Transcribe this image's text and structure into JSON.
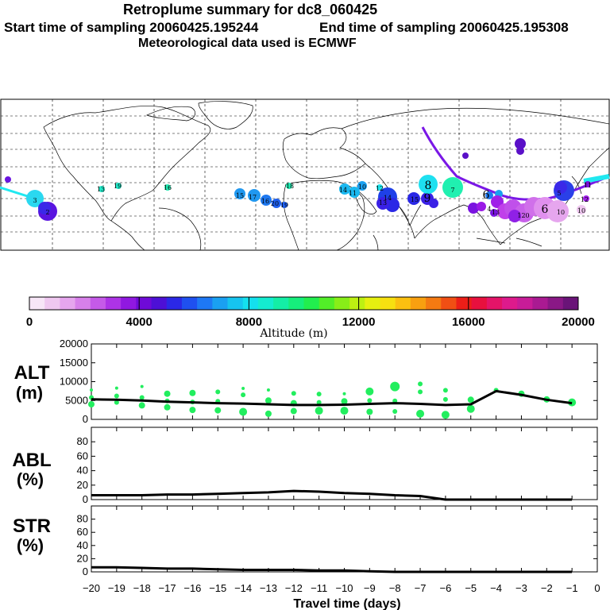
{
  "header": {
    "title": "Retroplume summary for dc8_060425",
    "start": "Start time of sampling 20060425.195244",
    "end": "End time of sampling 20060425.195308",
    "met": "Meteorological data used is ECMWF"
  },
  "colorbar": {
    "ticks": [
      "0",
      "4000",
      "8000",
      "12000",
      "16000",
      "20000"
    ],
    "label": "Altitude (m)",
    "colors": [
      "#f7e6f7",
      "#efc8f0",
      "#e6a6ee",
      "#d780ea",
      "#c55ae8",
      "#ad33e6",
      "#9018e0",
      "#6f0ad8",
      "#4d10d6",
      "#2b28e6",
      "#1f50f0",
      "#1e78f5",
      "#1aa0f2",
      "#16c4ef",
      "#14e0ee",
      "#14ecd0",
      "#14eea6",
      "#16ee7c",
      "#22ee4e",
      "#52ee28",
      "#88ee18",
      "#bdf012",
      "#e6f010",
      "#f7e010",
      "#fbc010",
      "#f8a010",
      "#f47a12",
      "#f04f14",
      "#ec1e18",
      "#e8103e",
      "#e41468",
      "#de1a8c",
      "#c81c98",
      "#aa1a92",
      "#8a1886",
      "#6a1478"
    ]
  },
  "map_labels": [
    "3",
    "2",
    "13",
    "19",
    "16",
    "15",
    "17",
    "16",
    "20",
    "19",
    "18",
    "14",
    "11",
    "10",
    "12",
    "14",
    "13",
    "15",
    "9",
    "8",
    "7",
    "6",
    "5",
    "4",
    "120",
    "10",
    "6",
    "10",
    "12",
    "11",
    "13"
  ],
  "panels": {
    "alt": {
      "label1": "ALT",
      "label2": "(m)",
      "yticks": [
        "20000",
        "15000",
        "10000",
        "5000",
        "0"
      ]
    },
    "abl": {
      "label1": "ABL",
      "label2": "(%)",
      "yticks": [
        "80",
        "60",
        "40",
        "20",
        "0"
      ]
    },
    "str": {
      "label1": "STR",
      "label2": "(%)",
      "yticks": [
        "80",
        "60",
        "40",
        "20",
        "0"
      ]
    }
  },
  "xaxis": {
    "ticks": [
      "−20",
      "−19",
      "−18",
      "−17",
      "−16",
      "−15",
      "−14",
      "−13",
      "−12",
      "−11",
      "−10",
      "−9",
      "−8",
      "−7",
      "−6",
      "−5",
      "−4",
      "−3",
      "−2",
      "−1",
      "0"
    ],
    "label": "Travel time (days)"
  },
  "chart_data": [
    {
      "type": "line",
      "title": "ALT",
      "ylabel": "ALT (m)",
      "xlabel": "Travel time (days)",
      "xlim": [
        -20,
        0
      ],
      "ylim": [
        0,
        20000
      ],
      "x": [
        -20,
        -19,
        -18,
        -17,
        -16,
        -15,
        -14,
        -13,
        -12,
        -11,
        -10,
        -9,
        -8,
        -7,
        -6,
        -5,
        -4,
        -3,
        -2,
        -1
      ],
      "values": [
        5300,
        5200,
        5000,
        4700,
        4500,
        4300,
        4200,
        4000,
        3800,
        3800,
        3900,
        4100,
        4300,
        4100,
        3800,
        4000,
        7500,
        6500,
        5200,
        4300
      ],
      "scatter_points": [
        {
          "x": -20,
          "y": 7800,
          "s": 2
        },
        {
          "x": -20,
          "y": 5800,
          "s": 3
        },
        {
          "x": -20,
          "y": 4000,
          "s": 4
        },
        {
          "x": -19,
          "y": 8300,
          "s": 2
        },
        {
          "x": -19,
          "y": 6200,
          "s": 3
        },
        {
          "x": -19,
          "y": 4500,
          "s": 3
        },
        {
          "x": -18,
          "y": 8700,
          "s": 2
        },
        {
          "x": -18,
          "y": 5800,
          "s": 3
        },
        {
          "x": -18,
          "y": 3700,
          "s": 4
        },
        {
          "x": -17,
          "y": 6800,
          "s": 4
        },
        {
          "x": -17,
          "y": 4900,
          "s": 3
        },
        {
          "x": -17,
          "y": 3200,
          "s": 4
        },
        {
          "x": -16,
          "y": 7000,
          "s": 4
        },
        {
          "x": -16,
          "y": 4600,
          "s": 3
        },
        {
          "x": -16,
          "y": 2500,
          "s": 4
        },
        {
          "x": -15,
          "y": 7300,
          "s": 3
        },
        {
          "x": -15,
          "y": 4800,
          "s": 3
        },
        {
          "x": -15,
          "y": 2400,
          "s": 4
        },
        {
          "x": -14,
          "y": 8200,
          "s": 2
        },
        {
          "x": -14,
          "y": 6500,
          "s": 3
        },
        {
          "x": -14,
          "y": 2000,
          "s": 5
        },
        {
          "x": -13,
          "y": 7800,
          "s": 2
        },
        {
          "x": -13,
          "y": 5000,
          "s": 4
        },
        {
          "x": -13,
          "y": 1500,
          "s": 4
        },
        {
          "x": -12,
          "y": 6900,
          "s": 3
        },
        {
          "x": -12,
          "y": 4300,
          "s": 4
        },
        {
          "x": -12,
          "y": 2200,
          "s": 4
        },
        {
          "x": -11,
          "y": 6700,
          "s": 3
        },
        {
          "x": -11,
          "y": 4500,
          "s": 3
        },
        {
          "x": -11,
          "y": 2300,
          "s": 5
        },
        {
          "x": -10,
          "y": 6800,
          "s": 2
        },
        {
          "x": -10,
          "y": 4800,
          "s": 4
        },
        {
          "x": -10,
          "y": 2300,
          "s": 5
        },
        {
          "x": -9,
          "y": 7400,
          "s": 5
        },
        {
          "x": -9,
          "y": 5000,
          "s": 3
        },
        {
          "x": -9,
          "y": 2000,
          "s": 4
        },
        {
          "x": -8,
          "y": 8700,
          "s": 6
        },
        {
          "x": -8,
          "y": 4900,
          "s": 3
        },
        {
          "x": -8,
          "y": 2100,
          "s": 3
        },
        {
          "x": -7,
          "y": 9400,
          "s": 3
        },
        {
          "x": -7,
          "y": 7300,
          "s": 3
        },
        {
          "x": -7,
          "y": 1500,
          "s": 5
        },
        {
          "x": -6,
          "y": 7700,
          "s": 3
        },
        {
          "x": -6,
          "y": 5300,
          "s": 3
        },
        {
          "x": -6,
          "y": 1200,
          "s": 5
        },
        {
          "x": -5,
          "y": 5200,
          "s": 4
        },
        {
          "x": -5,
          "y": 2800,
          "s": 5
        },
        {
          "x": -4,
          "y": 7700,
          "s": 3
        },
        {
          "x": -3,
          "y": 6800,
          "s": 4
        },
        {
          "x": -2,
          "y": 5300,
          "s": 4
        },
        {
          "x": -1,
          "y": 4500,
          "s": 5
        }
      ]
    },
    {
      "type": "line",
      "title": "ABL",
      "ylabel": "ABL (%)",
      "xlim": [
        -20,
        0
      ],
      "ylim": [
        0,
        100
      ],
      "x": [
        -20,
        -19,
        -18,
        -17,
        -16,
        -15,
        -14,
        -13,
        -12,
        -11,
        -10,
        -9,
        -8,
        -7,
        -6,
        -5,
        -4,
        -3,
        -2,
        -1
      ],
      "values": [
        6,
        6,
        6,
        7,
        7,
        8,
        9,
        10,
        12,
        11,
        9,
        8,
        6,
        5,
        0,
        0,
        0,
        0,
        0,
        0
      ]
    },
    {
      "type": "line",
      "title": "STR",
      "ylabel": "STR (%)",
      "xlim": [
        -20,
        0
      ],
      "ylim": [
        0,
        100
      ],
      "x": [
        -20,
        -19,
        -18,
        -17,
        -16,
        -15,
        -14,
        -13,
        -12,
        -11,
        -10,
        -9,
        -8,
        -7,
        -6,
        -5,
        -4,
        -3,
        -2,
        -1
      ],
      "values": [
        7,
        7,
        6,
        5,
        5,
        4,
        3,
        3,
        3,
        2,
        2,
        1,
        0,
        0,
        0,
        0,
        0,
        0,
        0,
        0
      ]
    }
  ]
}
